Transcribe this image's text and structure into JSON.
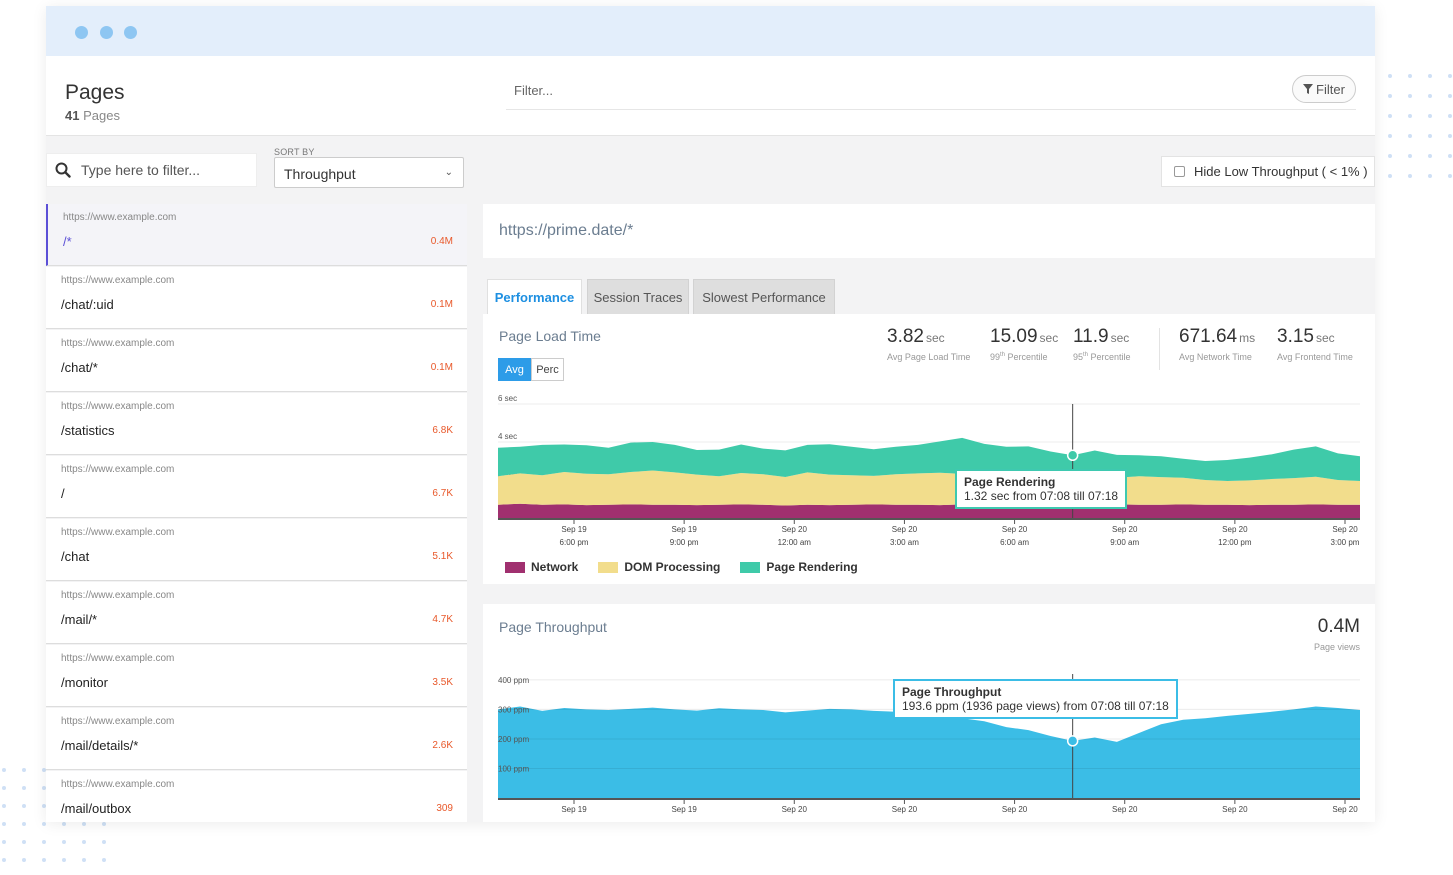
{
  "header": {
    "title": "Pages",
    "count": "41",
    "count_label": "Pages",
    "filter_placeholder": "Filter...",
    "filter_button": "Filter"
  },
  "controls": {
    "search_placeholder": "Type here to filter...",
    "sort_label": "SORT BY",
    "sort_value": "Throughput",
    "hide_low_label": "Hide Low Throughput ( < 1% )"
  },
  "pages": [
    {
      "domain": "https://www.example.com",
      "path": "/*",
      "count": "0.4M"
    },
    {
      "domain": "https://www.example.com",
      "path": "/chat/:uid",
      "count": "0.1M"
    },
    {
      "domain": "https://www.example.com",
      "path": "/chat/*",
      "count": "0.1M"
    },
    {
      "domain": "https://www.example.com",
      "path": "/statistics",
      "count": "6.8K"
    },
    {
      "domain": "https://www.example.com",
      "path": "/",
      "count": "6.7K"
    },
    {
      "domain": "https://www.example.com",
      "path": "/chat",
      "count": "5.1K"
    },
    {
      "domain": "https://www.example.com",
      "path": "/mail/*",
      "count": "4.7K"
    },
    {
      "domain": "https://www.example.com",
      "path": "/monitor",
      "count": "3.5K"
    },
    {
      "domain": "https://www.example.com",
      "path": "/mail/details/*",
      "count": "2.6K"
    },
    {
      "domain": "https://www.example.com",
      "path": "/mail/outbox",
      "count": "309"
    }
  ],
  "detail": {
    "url": "https://prime.date/*",
    "tabs": [
      "Performance",
      "Session Traces",
      "Slowest Performance"
    ],
    "load_title": "Page Load Time",
    "toggle": [
      "Avg",
      "Perc"
    ],
    "stats": [
      {
        "value": "3.82",
        "unit": "sec",
        "label": "Avg Page Load Time"
      },
      {
        "value": "15.09",
        "unit": "sec",
        "label_pre": "99",
        "label_sup": "th",
        "label_post": " Percentile"
      },
      {
        "value": "11.9",
        "unit": "sec",
        "label_pre": "95",
        "label_sup": "th",
        "label_post": " Percentile"
      },
      {
        "value": "671.64",
        "unit": "ms",
        "label": "Avg Network Time"
      },
      {
        "value": "3.15",
        "unit": "sec",
        "label": "Avg Frontend Time"
      }
    ],
    "legend": [
      {
        "name": "Network",
        "color": "#a0306f"
      },
      {
        "name": "DOM Processing",
        "color": "#f2dd8c"
      },
      {
        "name": "Page Rendering",
        "color": "#3fcaa9"
      }
    ],
    "load_tooltip": {
      "title": "Page Rendering",
      "text": "1.32 sec from 07:08 till 07:18"
    },
    "tp_title": "Page Throughput",
    "tp_value": "0.4M",
    "tp_value_label": "Page views",
    "tp_tooltip": {
      "title": "Page Throughput",
      "text": "193.6 ppm (1936 page views) from 07:08 till 07:18"
    }
  },
  "chart_data": [
    {
      "type": "area",
      "title": "Page Load Time",
      "y_ticks": [
        "6 sec",
        "4 sec",
        "2 sec"
      ],
      "ylim": [
        0,
        6
      ],
      "x_ticks": [
        {
          "date": "Sep 19",
          "time": "6:00 pm"
        },
        {
          "date": "Sep 19",
          "time": "9:00 pm"
        },
        {
          "date": "Sep 20",
          "time": "12:00 am"
        },
        {
          "date": "Sep 20",
          "time": "3:00 am"
        },
        {
          "date": "Sep 20",
          "time": "6:00 am"
        },
        {
          "date": "Sep 20",
          "time": "9:00 am"
        },
        {
          "date": "Sep 20",
          "time": "12:00 pm"
        },
        {
          "date": "Sep 20",
          "time": "3:00 pm"
        }
      ],
      "stacked": true,
      "series": [
        {
          "name": "Network",
          "color": "#a0306f",
          "values": [
            0.7,
            0.75,
            0.7,
            0.72,
            0.68,
            0.7,
            0.72,
            0.7,
            0.7,
            0.68,
            0.7,
            0.72,
            0.7,
            0.66,
            0.7,
            0.68,
            0.7,
            0.72,
            0.7,
            0.7,
            0.68,
            0.72,
            0.7,
            0.7,
            0.72,
            0.7,
            0.68,
            0.7,
            0.72,
            0.7,
            0.7,
            0.72,
            0.7,
            0.7,
            0.68,
            0.7,
            0.7,
            0.72,
            0.7,
            0.7
          ]
        },
        {
          "name": "DOM Processing",
          "color": "#f2dd8c",
          "values": [
            1.5,
            1.6,
            1.55,
            1.7,
            1.65,
            1.6,
            1.7,
            1.8,
            1.7,
            1.6,
            1.5,
            1.65,
            1.6,
            1.5,
            1.7,
            1.6,
            1.55,
            1.5,
            1.6,
            1.65,
            1.7,
            1.6,
            1.5,
            1.55,
            1.45,
            1.4,
            1.3,
            1.35,
            1.4,
            1.5,
            1.45,
            1.4,
            1.3,
            1.25,
            1.3,
            1.35,
            1.4,
            1.45,
            1.3,
            1.25
          ]
        },
        {
          "name": "Page Rendering",
          "color": "#3fcaa9",
          "values": [
            1.5,
            1.4,
            1.6,
            1.45,
            1.5,
            1.4,
            1.55,
            1.5,
            1.45,
            1.3,
            1.4,
            1.5,
            1.35,
            1.4,
            1.45,
            1.6,
            1.5,
            1.4,
            1.45,
            1.5,
            1.65,
            1.9,
            1.7,
            1.5,
            1.6,
            1.4,
            1.32,
            1.5,
            1.2,
            1.1,
            1.1,
            1.0,
            1.0,
            1.1,
            1.2,
            1.3,
            1.5,
            1.6,
            1.4,
            1.3
          ]
        }
      ]
    },
    {
      "type": "area",
      "title": "Page Throughput",
      "y_ticks": [
        "400 ppm",
        "300 ppm",
        "200 ppm",
        "100 ppm"
      ],
      "ylim": [
        0,
        420
      ],
      "x_ticks": [
        "Sep 19",
        "Sep 19",
        "Sep 20",
        "Sep 20",
        "Sep 20",
        "Sep 20",
        "Sep 20",
        "Sep 20"
      ],
      "series": [
        {
          "name": "Page Throughput",
          "color": "#3bbde6",
          "values": [
            300,
            310,
            295,
            305,
            300,
            298,
            302,
            306,
            300,
            296,
            304,
            300,
            298,
            290,
            296,
            302,
            300,
            295,
            292,
            290,
            285,
            270,
            260,
            240,
            230,
            210,
            193.6,
            205,
            190,
            220,
            250,
            265,
            270,
            278,
            285,
            292,
            300,
            310,
            305,
            298
          ]
        }
      ]
    }
  ]
}
